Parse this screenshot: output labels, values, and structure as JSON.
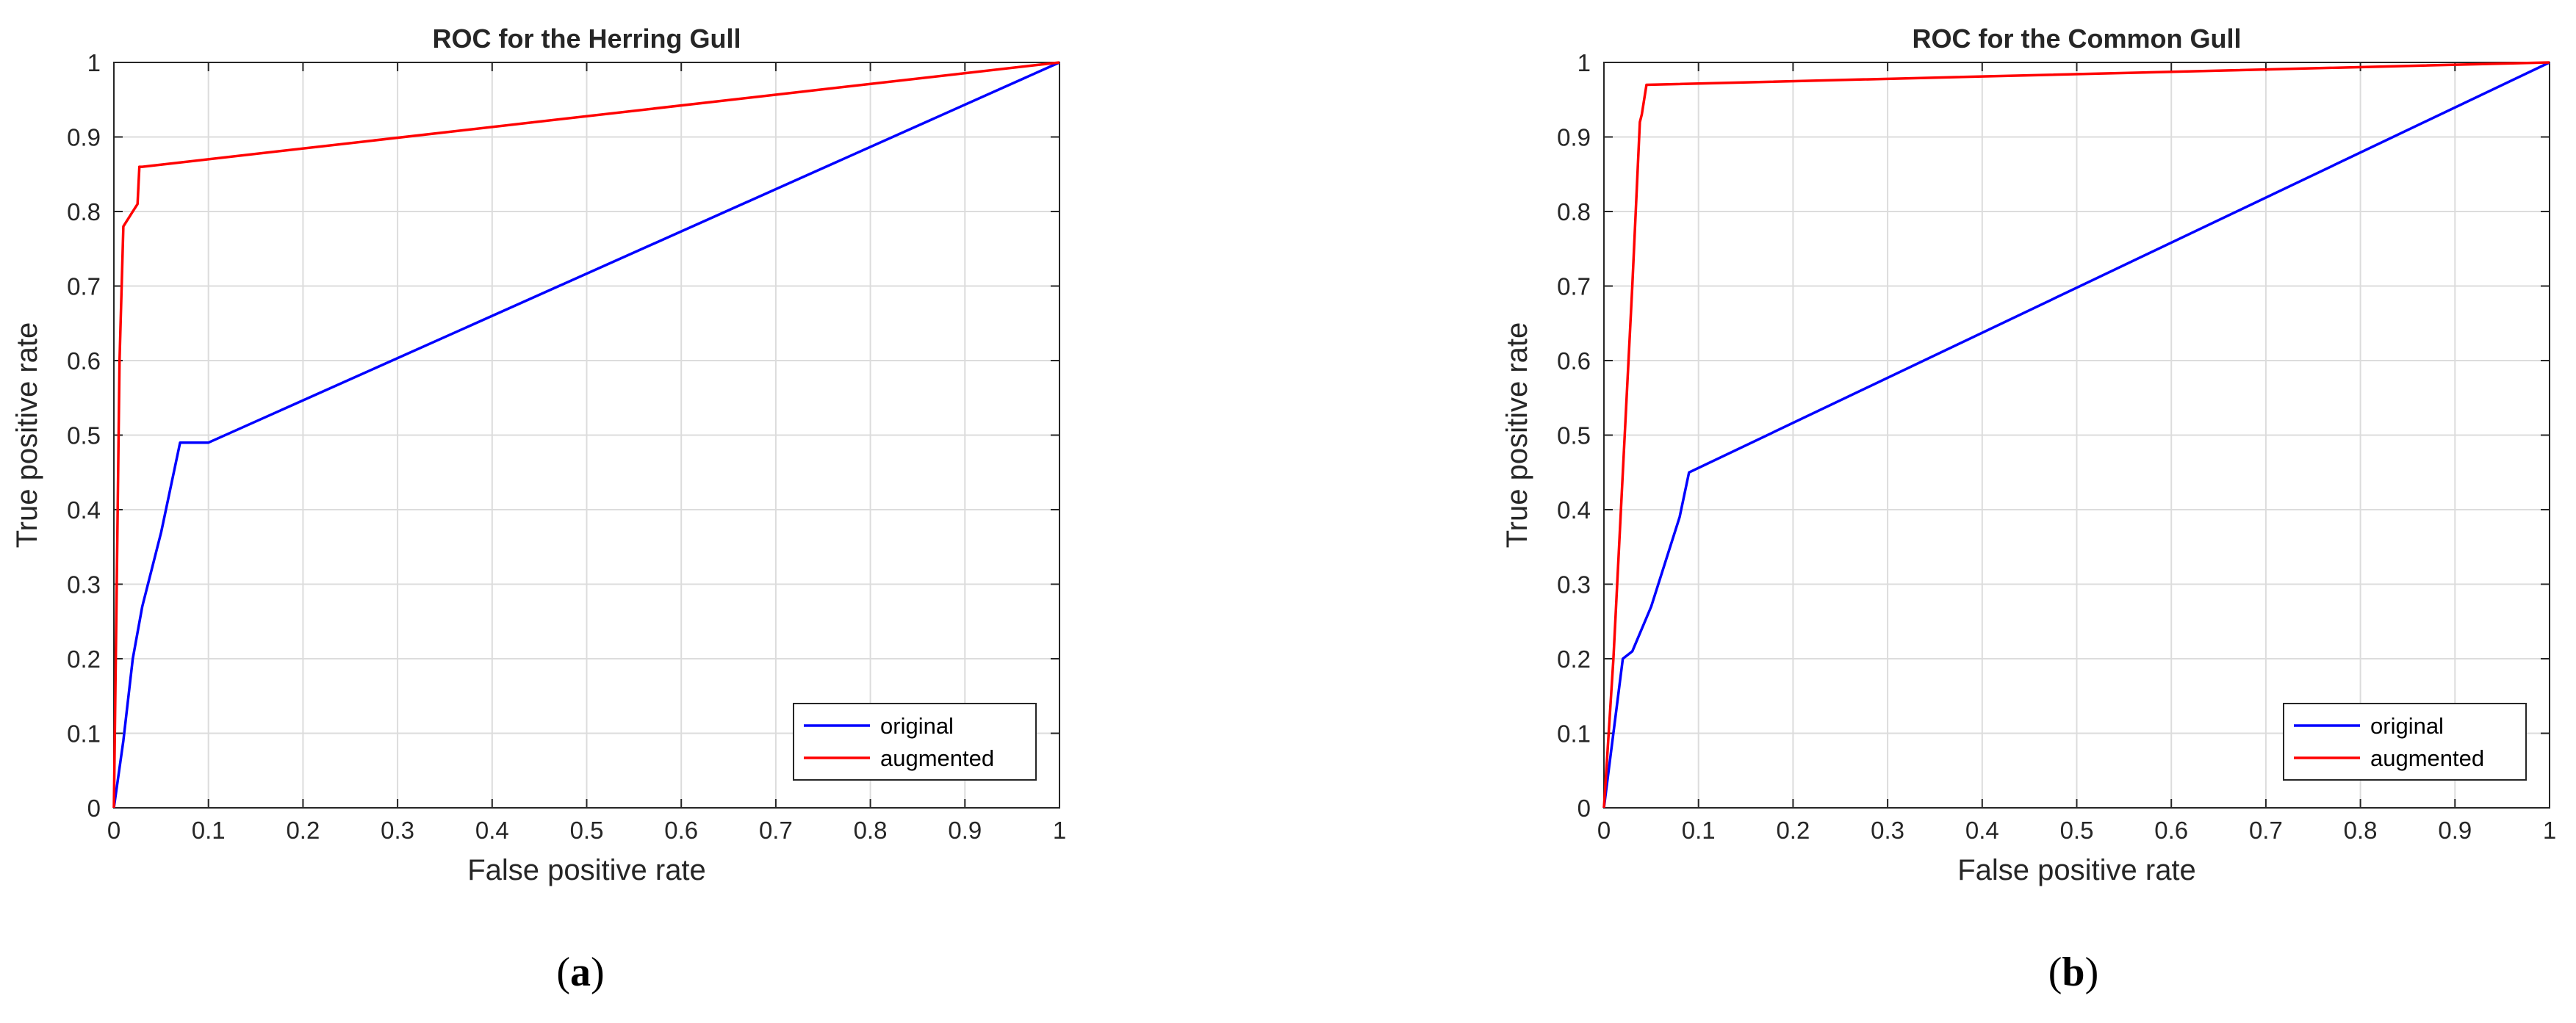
{
  "chart_data": [
    {
      "type": "line",
      "title": "ROC for the Herring Gull",
      "xlabel": "False positive rate",
      "ylabel": "True positive rate",
      "xlim": [
        0,
        1
      ],
      "ylim": [
        0,
        1
      ],
      "xticks": [
        "0",
        "0.1",
        "0.2",
        "0.3",
        "0.4",
        "0.5",
        "0.6",
        "0.7",
        "0.8",
        "0.9",
        "1"
      ],
      "yticks": [
        "0",
        "0.1",
        "0.2",
        "0.3",
        "0.4",
        "0.5",
        "0.6",
        "0.7",
        "0.8",
        "0.9",
        "1"
      ],
      "grid": true,
      "legend_position": "bottom-right",
      "panel_label": "a",
      "series": [
        {
          "name": "original",
          "color": "#0000ff",
          "points": [
            [
              0,
              0
            ],
            [
              0.01,
              0.09
            ],
            [
              0.02,
              0.2
            ],
            [
              0.03,
              0.27
            ],
            [
              0.05,
              0.37
            ],
            [
              0.07,
              0.49
            ],
            [
              0.09,
              0.49
            ],
            [
              0.1,
              0.49
            ],
            [
              1,
              1
            ]
          ]
        },
        {
          "name": "augmented",
          "color": "#ff0000",
          "points": [
            [
              0,
              0
            ],
            [
              0.003,
              0.3
            ],
            [
              0.006,
              0.6
            ],
            [
              0.01,
              0.78
            ],
            [
              0.02,
              0.8
            ],
            [
              0.025,
              0.81
            ],
            [
              0.027,
              0.86
            ],
            [
              0.03,
              0.86
            ],
            [
              1,
              1
            ]
          ]
        }
      ]
    },
    {
      "type": "line",
      "title": "ROC for the Common Gull",
      "xlabel": "False positive rate",
      "ylabel": "True positive rate",
      "xlim": [
        0,
        1
      ],
      "ylim": [
        0,
        1
      ],
      "xticks": [
        "0",
        "0.1",
        "0.2",
        "0.3",
        "0.4",
        "0.5",
        "0.6",
        "0.7",
        "0.8",
        "0.9",
        "1"
      ],
      "yticks": [
        "0",
        "0.1",
        "0.2",
        "0.3",
        "0.4",
        "0.5",
        "0.6",
        "0.7",
        "0.8",
        "0.9",
        "1"
      ],
      "grid": true,
      "legend_position": "bottom-right",
      "panel_label": "b",
      "series": [
        {
          "name": "original",
          "color": "#0000ff",
          "points": [
            [
              0,
              0
            ],
            [
              0.02,
              0.2
            ],
            [
              0.03,
              0.21
            ],
            [
              0.05,
              0.27
            ],
            [
              0.08,
              0.39
            ],
            [
              0.09,
              0.45
            ],
            [
              1,
              1
            ]
          ]
        },
        {
          "name": "augmented",
          "color": "#ff0000",
          "points": [
            [
              0,
              0
            ],
            [
              0.01,
              0.2
            ],
            [
              0.02,
              0.45
            ],
            [
              0.03,
              0.7
            ],
            [
              0.038,
              0.92
            ],
            [
              0.04,
              0.93
            ],
            [
              0.045,
              0.97
            ],
            [
              1,
              1
            ]
          ]
        }
      ]
    }
  ]
}
